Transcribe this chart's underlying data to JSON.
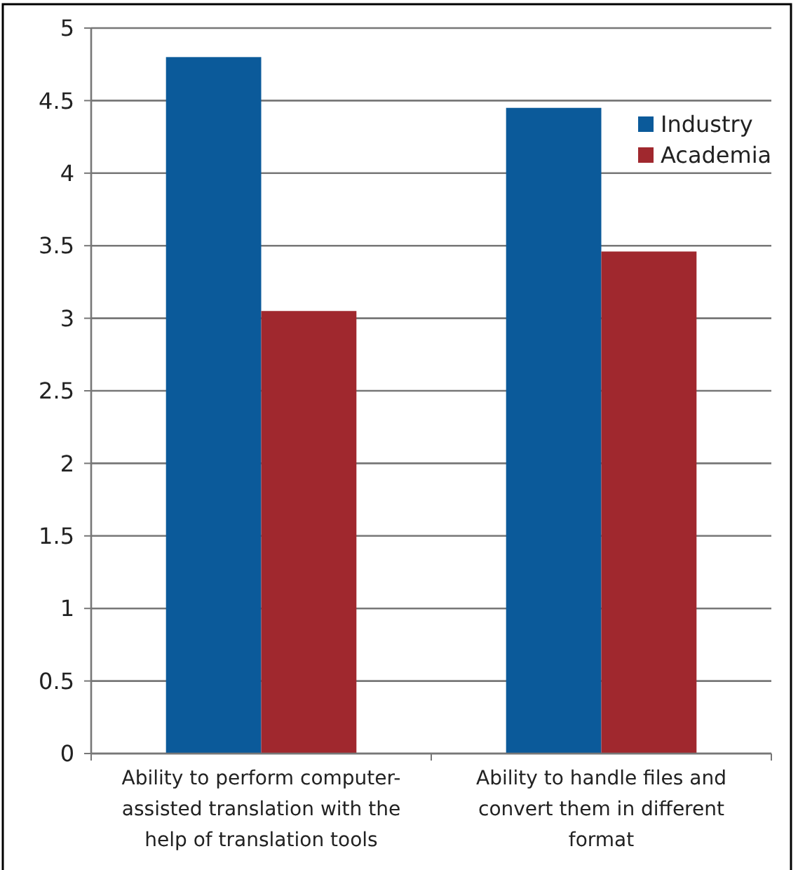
{
  "chart_data": {
    "type": "bar",
    "categories": [
      "Ability to perform computer-assisted translation with the help of translation tools",
      "Ability to handle files and convert them in different format"
    ],
    "series": [
      {
        "name": "Industry",
        "color": "#0b5a9a",
        "values": [
          4.8,
          4.45
        ]
      },
      {
        "name": "Academia",
        "color": "#a0282e",
        "values": [
          3.05,
          3.46
        ]
      }
    ],
    "ylim": [
      0,
      5
    ],
    "yticks": [
      0,
      0.5,
      1,
      1.5,
      2,
      2.5,
      3,
      3.5,
      4,
      4.5,
      5
    ],
    "grid": "y",
    "legend": "top right"
  }
}
